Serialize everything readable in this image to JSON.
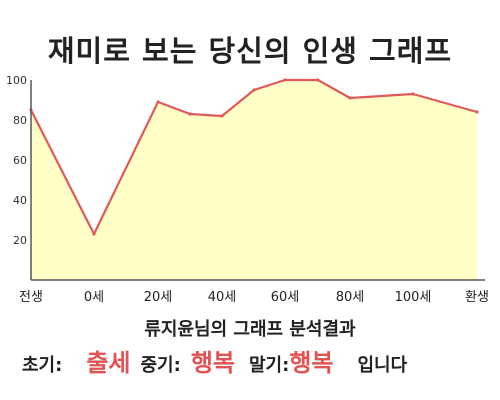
{
  "title": "재미로 보는 당신의 인생 그래프",
  "chart_data": {
    "type": "area",
    "x_labels": [
      "전생",
      "0세",
      "20세",
      "40세",
      "60세",
      "80세",
      "100세",
      "환생"
    ],
    "y_ticks": [
      20,
      40,
      60,
      80,
      100
    ],
    "ylim": [
      0,
      100
    ],
    "grid": false,
    "points": [
      {
        "x": "전생",
        "y": 85
      },
      {
        "x": "0세",
        "y": 23
      },
      {
        "x": "20세",
        "y": 89
      },
      {
        "x": "30세",
        "y": 83
      },
      {
        "x": "40세",
        "y": 82
      },
      {
        "x": "50세",
        "y": 95
      },
      {
        "x": "60세",
        "y": 100
      },
      {
        "x": "70세",
        "y": 100
      },
      {
        "x": "80세",
        "y": 91
      },
      {
        "x": "100세",
        "y": 93
      },
      {
        "x": "환생",
        "y": 84
      }
    ],
    "colors": {
      "line": "#e05a5a",
      "fill": "#ffffc6",
      "axis": "#555555"
    }
  },
  "result": {
    "heading": "류지윤님의 그래프 분석결과",
    "early_label": "초기:",
    "early_value": "출세",
    "middle_label": "중기:",
    "middle_value": "행복",
    "late_label": "말기:",
    "late_value": "행복",
    "ending": "입니다"
  },
  "colors": {
    "accent": "#e35252"
  }
}
